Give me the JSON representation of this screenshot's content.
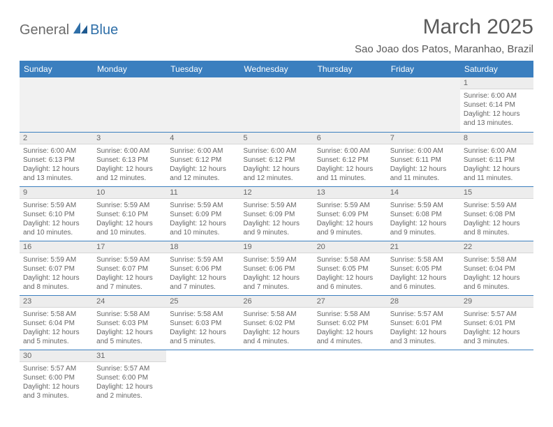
{
  "logo": {
    "text1": "General",
    "text2": "Blue"
  },
  "title": "March 2025",
  "location": "Sao Joao dos Patos, Maranhao, Brazil",
  "colors": {
    "header_bg": "#3b7fbf",
    "header_text": "#ffffff",
    "row_divider": "#3b7fbf",
    "daynum_bg": "#ededed",
    "body_text": "#666666",
    "logo_gray": "#6b6b6b",
    "logo_blue": "#2f6fa8"
  },
  "weekdays": [
    "Sunday",
    "Monday",
    "Tuesday",
    "Wednesday",
    "Thursday",
    "Friday",
    "Saturday"
  ],
  "weeks": [
    [
      null,
      null,
      null,
      null,
      null,
      null,
      {
        "n": "1",
        "sr": "6:00 AM",
        "ss": "6:14 PM",
        "dl": "12 hours and 13 minutes."
      }
    ],
    [
      {
        "n": "2",
        "sr": "6:00 AM",
        "ss": "6:13 PM",
        "dl": "12 hours and 13 minutes."
      },
      {
        "n": "3",
        "sr": "6:00 AM",
        "ss": "6:13 PM",
        "dl": "12 hours and 12 minutes."
      },
      {
        "n": "4",
        "sr": "6:00 AM",
        "ss": "6:12 PM",
        "dl": "12 hours and 12 minutes."
      },
      {
        "n": "5",
        "sr": "6:00 AM",
        "ss": "6:12 PM",
        "dl": "12 hours and 12 minutes."
      },
      {
        "n": "6",
        "sr": "6:00 AM",
        "ss": "6:12 PM",
        "dl": "12 hours and 11 minutes."
      },
      {
        "n": "7",
        "sr": "6:00 AM",
        "ss": "6:11 PM",
        "dl": "12 hours and 11 minutes."
      },
      {
        "n": "8",
        "sr": "6:00 AM",
        "ss": "6:11 PM",
        "dl": "12 hours and 11 minutes."
      }
    ],
    [
      {
        "n": "9",
        "sr": "5:59 AM",
        "ss": "6:10 PM",
        "dl": "12 hours and 10 minutes."
      },
      {
        "n": "10",
        "sr": "5:59 AM",
        "ss": "6:10 PM",
        "dl": "12 hours and 10 minutes."
      },
      {
        "n": "11",
        "sr": "5:59 AM",
        "ss": "6:09 PM",
        "dl": "12 hours and 10 minutes."
      },
      {
        "n": "12",
        "sr": "5:59 AM",
        "ss": "6:09 PM",
        "dl": "12 hours and 9 minutes."
      },
      {
        "n": "13",
        "sr": "5:59 AM",
        "ss": "6:09 PM",
        "dl": "12 hours and 9 minutes."
      },
      {
        "n": "14",
        "sr": "5:59 AM",
        "ss": "6:08 PM",
        "dl": "12 hours and 9 minutes."
      },
      {
        "n": "15",
        "sr": "5:59 AM",
        "ss": "6:08 PM",
        "dl": "12 hours and 8 minutes."
      }
    ],
    [
      {
        "n": "16",
        "sr": "5:59 AM",
        "ss": "6:07 PM",
        "dl": "12 hours and 8 minutes."
      },
      {
        "n": "17",
        "sr": "5:59 AM",
        "ss": "6:07 PM",
        "dl": "12 hours and 7 minutes."
      },
      {
        "n": "18",
        "sr": "5:59 AM",
        "ss": "6:06 PM",
        "dl": "12 hours and 7 minutes."
      },
      {
        "n": "19",
        "sr": "5:59 AM",
        "ss": "6:06 PM",
        "dl": "12 hours and 7 minutes."
      },
      {
        "n": "20",
        "sr": "5:58 AM",
        "ss": "6:05 PM",
        "dl": "12 hours and 6 minutes."
      },
      {
        "n": "21",
        "sr": "5:58 AM",
        "ss": "6:05 PM",
        "dl": "12 hours and 6 minutes."
      },
      {
        "n": "22",
        "sr": "5:58 AM",
        "ss": "6:04 PM",
        "dl": "12 hours and 6 minutes."
      }
    ],
    [
      {
        "n": "23",
        "sr": "5:58 AM",
        "ss": "6:04 PM",
        "dl": "12 hours and 5 minutes."
      },
      {
        "n": "24",
        "sr": "5:58 AM",
        "ss": "6:03 PM",
        "dl": "12 hours and 5 minutes."
      },
      {
        "n": "25",
        "sr": "5:58 AM",
        "ss": "6:03 PM",
        "dl": "12 hours and 5 minutes."
      },
      {
        "n": "26",
        "sr": "5:58 AM",
        "ss": "6:02 PM",
        "dl": "12 hours and 4 minutes."
      },
      {
        "n": "27",
        "sr": "5:58 AM",
        "ss": "6:02 PM",
        "dl": "12 hours and 4 minutes."
      },
      {
        "n": "28",
        "sr": "5:57 AM",
        "ss": "6:01 PM",
        "dl": "12 hours and 3 minutes."
      },
      {
        "n": "29",
        "sr": "5:57 AM",
        "ss": "6:01 PM",
        "dl": "12 hours and 3 minutes."
      }
    ],
    [
      {
        "n": "30",
        "sr": "5:57 AM",
        "ss": "6:00 PM",
        "dl": "12 hours and 3 minutes."
      },
      {
        "n": "31",
        "sr": "5:57 AM",
        "ss": "6:00 PM",
        "dl": "12 hours and 2 minutes."
      },
      null,
      null,
      null,
      null,
      null
    ]
  ],
  "labels": {
    "sunrise": "Sunrise:",
    "sunset": "Sunset:",
    "daylight": "Daylight:"
  }
}
